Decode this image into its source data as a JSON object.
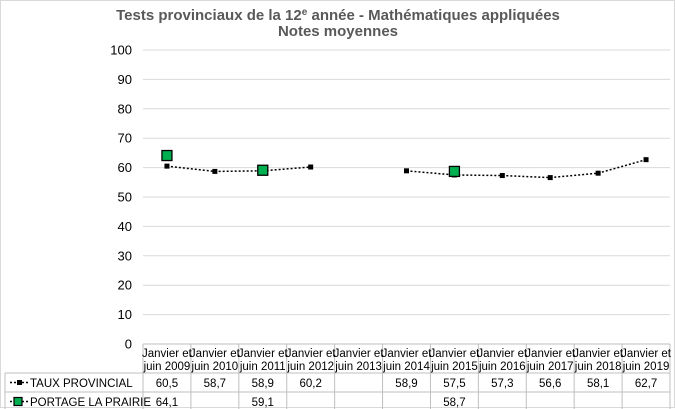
{
  "chart_data": {
    "type": "line",
    "title": "Tests provinciaux de la 12",
    "title_sup": "e",
    "title_rest": " année - Mathématiques appliquées",
    "subtitle": "Notes moyennes",
    "categories": [
      [
        "Janvier et",
        "juin 2009"
      ],
      [
        "Janvier et",
        "juin 2010"
      ],
      [
        "Janvier et",
        "juin 2011"
      ],
      [
        "Janvier et",
        "juin 2012"
      ],
      [
        "Janvier et",
        "juin 2013"
      ],
      [
        "Janvier et",
        "juin 2014"
      ],
      [
        "Janvier et",
        "juin 2015"
      ],
      [
        "Janvier et",
        "juin 2016"
      ],
      [
        "Janvier et",
        "juin 2017"
      ],
      [
        "Janvier et",
        "juin 2018"
      ],
      [
        "Janvier et",
        "juin 2019"
      ]
    ],
    "ylim": [
      0,
      100
    ],
    "yticks": [
      "0",
      "10",
      "20",
      "30",
      "40",
      "50",
      "60",
      "70",
      "80",
      "90",
      "100"
    ],
    "grid": true,
    "series": [
      {
        "name": "TAUX PROVINCIAL",
        "values": [
          60.5,
          58.7,
          58.9,
          60.2,
          null,
          58.9,
          57.5,
          57.3,
          56.6,
          58.1,
          62.7
        ],
        "labels": [
          "60,5",
          "58,7",
          "58,9",
          "60,2",
          "",
          "58,9",
          "57,5",
          "57,3",
          "56,6",
          "58,1",
          "62,7"
        ],
        "color": "#000000",
        "marker": "small-square"
      },
      {
        "name": "PORTAGE LA PRAIRIE",
        "values": [
          64.1,
          null,
          59.1,
          null,
          null,
          null,
          58.7,
          null,
          null,
          null,
          null
        ],
        "labels": [
          "64,1",
          "",
          "59,1",
          "",
          "",
          "",
          "58,7",
          "",
          "",
          "",
          ""
        ],
        "color": "#00b050",
        "marker": "large-square"
      }
    ]
  }
}
